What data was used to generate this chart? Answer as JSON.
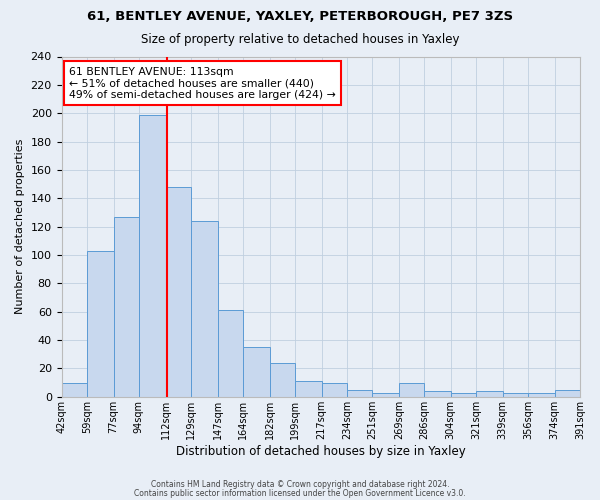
{
  "title1": "61, BENTLEY AVENUE, YAXLEY, PETERBOROUGH, PE7 3ZS",
  "title2": "Size of property relative to detached houses in Yaxley",
  "xlabel": "Distribution of detached houses by size in Yaxley",
  "ylabel": "Number of detached properties",
  "bin_edges": [
    42,
    59,
    77,
    94,
    112,
    129,
    147,
    164,
    182,
    199,
    217,
    234,
    251,
    269,
    286,
    304,
    321,
    339,
    356,
    374,
    391
  ],
  "bar_heights": [
    10,
    103,
    127,
    199,
    148,
    124,
    61,
    35,
    24,
    11,
    10,
    5,
    3,
    10,
    4,
    3,
    4,
    3,
    3,
    5
  ],
  "bar_color": "#c8d8ee",
  "bar_edge_color": "#5b9bd5",
  "vline_x": 113,
  "vline_color": "red",
  "annotation_title": "61 BENTLEY AVENUE: 113sqm",
  "annotation_line1": "← 51% of detached houses are smaller (440)",
  "annotation_line2": "49% of semi-detached houses are larger (424) →",
  "annotation_box_color": "white",
  "annotation_box_edge_color": "red",
  "tick_labels": [
    "42sqm",
    "59sqm",
    "77sqm",
    "94sqm",
    "112sqm",
    "129sqm",
    "147sqm",
    "164sqm",
    "182sqm",
    "199sqm",
    "217sqm",
    "234sqm",
    "251sqm",
    "269sqm",
    "286sqm",
    "304sqm",
    "321sqm",
    "339sqm",
    "356sqm",
    "374sqm",
    "391sqm"
  ],
  "ylim": [
    0,
    240
  ],
  "yticks": [
    0,
    20,
    40,
    60,
    80,
    100,
    120,
    140,
    160,
    180,
    200,
    220,
    240
  ],
  "grid_color": "#c0cfe0",
  "background_color": "#e8eef6",
  "footer1": "Contains HM Land Registry data © Crown copyright and database right 2024.",
  "footer2": "Contains public sector information licensed under the Open Government Licence v3.0."
}
